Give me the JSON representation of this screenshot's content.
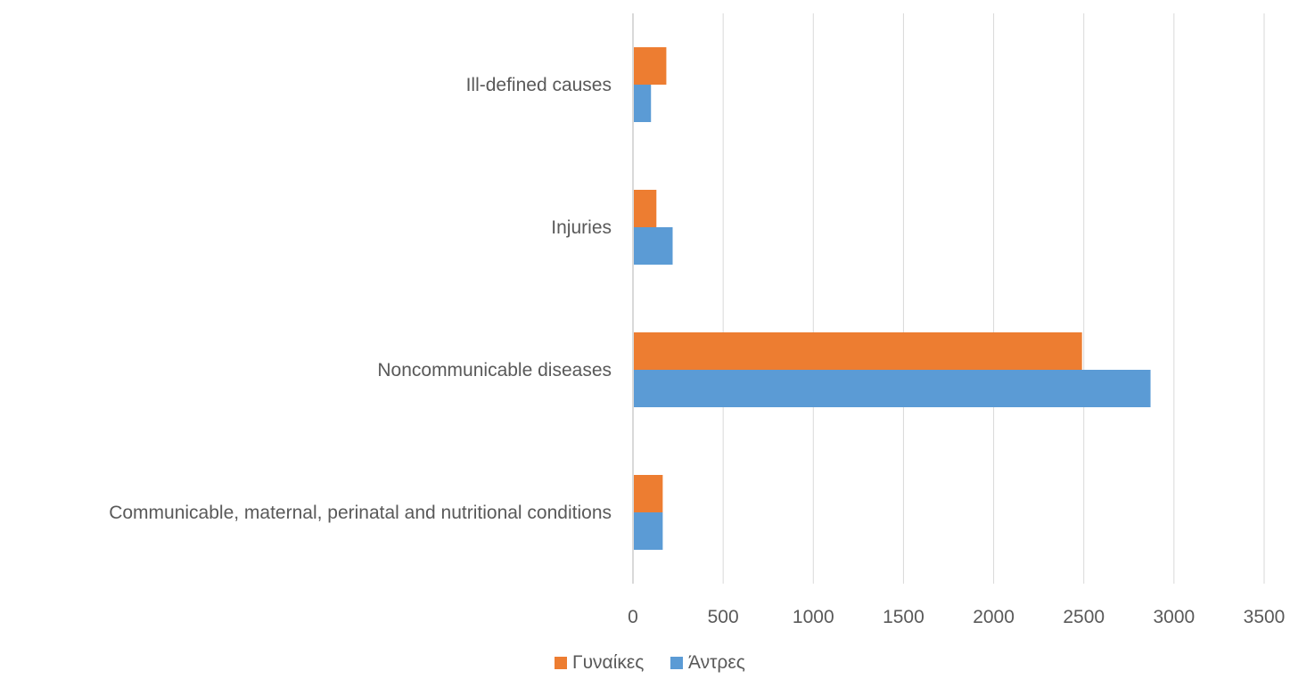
{
  "chart_data": {
    "type": "bar",
    "orientation": "horizontal",
    "categories": [
      "Communicable, maternal, perinatal and nutritional conditions",
      "Noncommunicable diseases",
      "Injuries",
      "Ill-defined causes"
    ],
    "series": [
      {
        "name": "Γυναίκες",
        "color": "#ED7D31",
        "values": [
          165,
          2490,
          130,
          185
        ]
      },
      {
        "name": "Άντρες",
        "color": "#5B9BD5",
        "values": [
          165,
          2870,
          220,
          100
        ]
      }
    ],
    "xticks": [
      "0",
      "500",
      "1000",
      "1500",
      "2000",
      "2500",
      "3000",
      "3500"
    ],
    "xlim": [
      0,
      3500
    ],
    "grid": true,
    "legend": "bottom",
    "title": "",
    "xlabel": "",
    "ylabel": ""
  }
}
